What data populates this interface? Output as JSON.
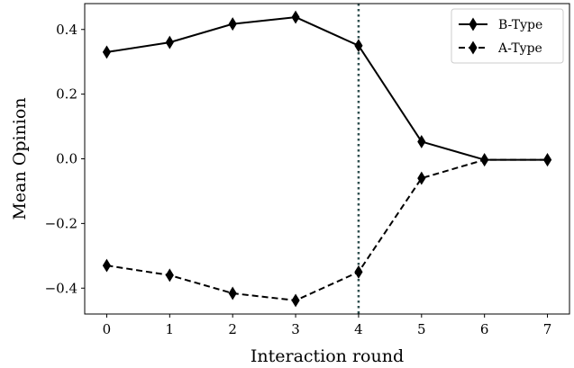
{
  "chart_data": {
    "type": "line",
    "title": "",
    "xlabel": "Interaction round",
    "ylabel": "Mean Opinion",
    "x": [
      0,
      1,
      2,
      3,
      4,
      5,
      6,
      7
    ],
    "xlim": [
      -0.35,
      7.35
    ],
    "ylim": [
      -0.48,
      0.48
    ],
    "xticks": [
      0,
      1,
      2,
      3,
      4,
      5,
      6,
      7
    ],
    "xtick_labels": [
      "0",
      "1",
      "2",
      "3",
      "4",
      "5",
      "6",
      "7"
    ],
    "yticks": [
      -0.4,
      -0.2,
      0.0,
      0.2,
      0.4
    ],
    "ytick_labels": [
      "−0.4",
      "−0.2",
      "0.0",
      "0.2",
      "0.4"
    ],
    "grid": false,
    "legend_position": "top-right",
    "series": [
      {
        "name": "B-Type",
        "line_style": "solid",
        "marker": "thin-diamond",
        "color": "#000000",
        "values": [
          0.33,
          0.36,
          0.417,
          0.438,
          0.35,
          0.053,
          -0.003,
          -0.003
        ]
      },
      {
        "name": "A-Type",
        "line_style": "dashed",
        "marker": "thin-diamond",
        "color": "#000000",
        "values": [
          -0.33,
          -0.36,
          -0.416,
          -0.438,
          -0.35,
          -0.06,
          -0.003,
          -0.003
        ]
      }
    ],
    "annotations": [
      {
        "type": "vertical-line",
        "x": 4,
        "line_style": "dotted",
        "color": "#2f4f4f"
      }
    ]
  }
}
